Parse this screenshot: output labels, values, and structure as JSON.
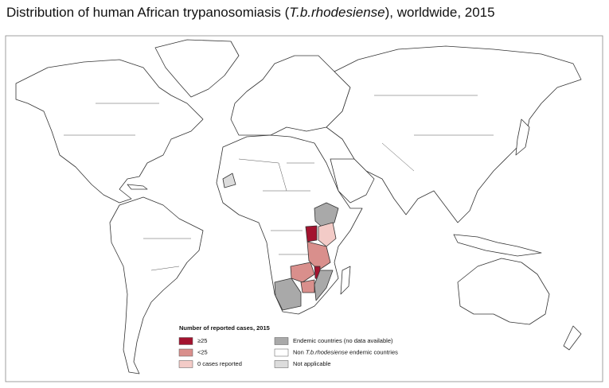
{
  "title": {
    "before": "Distribution of human African trypanosomiasis (",
    "italic": "T.b.rhodesiense",
    "after": "), worldwide, 2015"
  },
  "legend": {
    "title": "Number of reported cases, 2015",
    "items": [
      {
        "label": "≥25",
        "color": "#a3132f"
      },
      {
        "label": "<25",
        "color": "#d98f8c"
      },
      {
        "label": "0 cases reported",
        "color": "#f3cbc7"
      },
      {
        "label": "Endemic countries (no data available)",
        "color": "#a9a9a9"
      },
      {
        "label_parts": [
          "Non ",
          "T.b.rhodesiense",
          " endemic countries"
        ],
        "color": "#ffffff"
      },
      {
        "label": "Not applicable",
        "color": "#dcdcdc"
      }
    ]
  }
}
